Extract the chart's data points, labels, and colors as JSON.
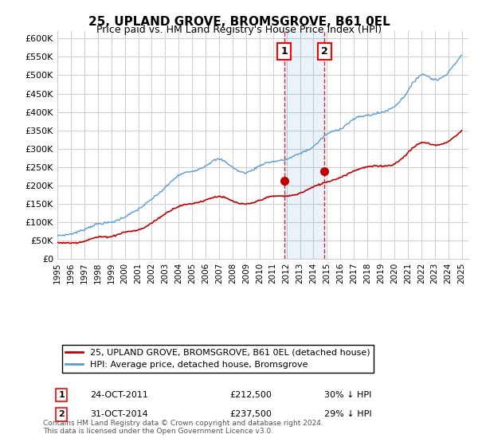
{
  "title": "25, UPLAND GROVE, BROMSGROVE, B61 0EL",
  "subtitle": "Price paid vs. HM Land Registry's House Price Index (HPI)",
  "ylabel_ticks": [
    "£0",
    "£50K",
    "£100K",
    "£150K",
    "£200K",
    "£250K",
    "£300K",
    "£350K",
    "£400K",
    "£450K",
    "£500K",
    "£550K",
    "£600K"
  ],
  "ylim": [
    0,
    620000
  ],
  "xlim_start": 1995.0,
  "xlim_end": 2025.5,
  "legend_line1": "25, UPLAND GROVE, BROMSGROVE, B61 0EL (detached house)",
  "legend_line2": "HPI: Average price, detached house, Bromsgrove",
  "sale1_date": "24-OCT-2011",
  "sale1_price": "£212,500",
  "sale1_pct": "30% ↓ HPI",
  "sale2_date": "31-OCT-2014",
  "sale2_price": "£237,500",
  "sale2_pct": "29% ↓ HPI",
  "annotation_text": "Contains HM Land Registry data © Crown copyright and database right 2024.\nThis data is licensed under the Open Government Licence v3.0.",
  "hpi_color": "#5b9bd5",
  "price_color": "#c00000",
  "sale1_x": 2011.82,
  "sale2_x": 2014.83,
  "sale1_y": 212500,
  "sale2_y": 237500,
  "background_color": "#ffffff",
  "grid_color": "#d0d0d0"
}
